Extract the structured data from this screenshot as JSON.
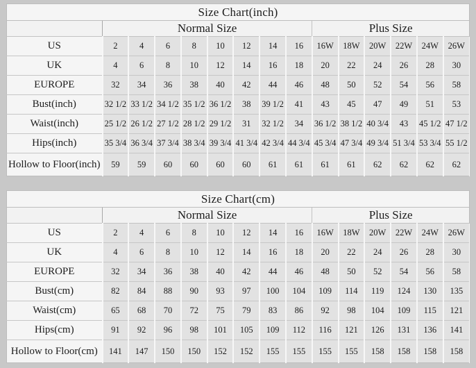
{
  "colors": {
    "page_background": "#c8c8c8",
    "table_background": "#f5f5f5",
    "data_cell_background": "#e2e2e2",
    "grid_line": "#c6c6c6",
    "text": "#1c1c1c"
  },
  "tables": [
    {
      "title": "Size Chart(inch)",
      "group_headers": {
        "normal": "Normal Size",
        "plus": "Plus Size"
      },
      "normal_col_count": 8,
      "plus_col_count": 6,
      "rows": [
        {
          "label": "US",
          "values": [
            "2",
            "4",
            "6",
            "8",
            "10",
            "12",
            "14",
            "16",
            "16W",
            "18W",
            "20W",
            "22W",
            "24W",
            "26W"
          ]
        },
        {
          "label": "UK",
          "values": [
            "4",
            "6",
            "8",
            "10",
            "12",
            "14",
            "16",
            "18",
            "20",
            "22",
            "24",
            "26",
            "28",
            "30"
          ]
        },
        {
          "label": "EUROPE",
          "values": [
            "32",
            "34",
            "36",
            "38",
            "40",
            "42",
            "44",
            "46",
            "48",
            "50",
            "52",
            "54",
            "56",
            "58"
          ]
        },
        {
          "label": "Bust(inch)",
          "values": [
            "32 1/2",
            "33 1/2",
            "34 1/2",
            "35 1/2",
            "36 1/2",
            "38",
            "39 1/2",
            "41",
            "43",
            "45",
            "47",
            "49",
            "51",
            "53"
          ]
        },
        {
          "label": "Waist(inch)",
          "values": [
            "25 1/2",
            "26 1/2",
            "27 1/2",
            "28 1/2",
            "29 1/2",
            "31",
            "32 1/2",
            "34",
            "36 1/2",
            "38 1/2",
            "40 3/4",
            "43",
            "45 1/2",
            "47 1/2"
          ]
        },
        {
          "label": "Hips(inch)",
          "values": [
            "35 3/4",
            "36 3/4",
            "37 3/4",
            "38 3/4",
            "39 3/4",
            "41 3/4",
            "42 3/4",
            "44 3/4",
            "45 3/4",
            "47 3/4",
            "49 3/4",
            "51 3/4",
            "53 3/4",
            "55 1/2"
          ]
        },
        {
          "label": "Hollow to Floor(inch)",
          "values": [
            "59",
            "59",
            "60",
            "60",
            "60",
            "60",
            "61",
            "61",
            "61",
            "61",
            "62",
            "62",
            "62",
            "62"
          ]
        }
      ]
    },
    {
      "title": "Size Chart(cm)",
      "group_headers": {
        "normal": "Normal Size",
        "plus": "Plus Size"
      },
      "normal_col_count": 8,
      "plus_col_count": 6,
      "rows": [
        {
          "label": "US",
          "values": [
            "2",
            "4",
            "6",
            "8",
            "10",
            "12",
            "14",
            "16",
            "16W",
            "18W",
            "20W",
            "22W",
            "24W",
            "26W"
          ]
        },
        {
          "label": "UK",
          "values": [
            "4",
            "6",
            "8",
            "10",
            "12",
            "14",
            "16",
            "18",
            "20",
            "22",
            "24",
            "26",
            "28",
            "30"
          ]
        },
        {
          "label": "EUROPE",
          "values": [
            "32",
            "34",
            "36",
            "38",
            "40",
            "42",
            "44",
            "46",
            "48",
            "50",
            "52",
            "54",
            "56",
            "58"
          ]
        },
        {
          "label": "Bust(cm)",
          "values": [
            "82",
            "84",
            "88",
            "90",
            "93",
            "97",
            "100",
            "104",
            "109",
            "114",
            "119",
            "124",
            "130",
            "135"
          ]
        },
        {
          "label": "Waist(cm)",
          "values": [
            "65",
            "68",
            "70",
            "72",
            "75",
            "79",
            "83",
            "86",
            "92",
            "98",
            "104",
            "109",
            "115",
            "121"
          ]
        },
        {
          "label": "Hips(cm)",
          "values": [
            "91",
            "92",
            "96",
            "98",
            "101",
            "105",
            "109",
            "112",
            "116",
            "121",
            "126",
            "131",
            "136",
            "141"
          ]
        },
        {
          "label": "Hollow to Floor(cm)",
          "values": [
            "141",
            "147",
            "150",
            "150",
            "152",
            "152",
            "155",
            "155",
            "155",
            "155",
            "158",
            "158",
            "158",
            "158"
          ]
        }
      ]
    }
  ]
}
